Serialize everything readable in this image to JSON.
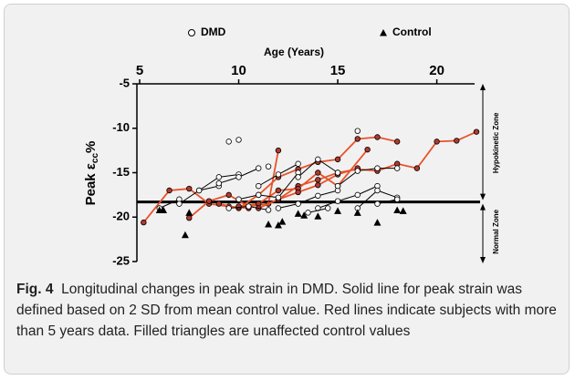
{
  "chart_data": {
    "type": "line",
    "xlabel": "Age (Years)",
    "ylabel": {
      "text": "Peak ε",
      "sub": "cc",
      "suffix": "%"
    },
    "legend": [
      {
        "label": "DMD",
        "marker": "circle"
      },
      {
        "label": "Control",
        "marker": "triangle"
      }
    ],
    "xlim": [
      5,
      22
    ],
    "xticks": [
      5,
      10,
      15,
      20
    ],
    "ylim": [
      -5,
      -25
    ],
    "yticks": [
      -5,
      -10,
      -15,
      -20,
      -25
    ],
    "threshold": -18.3,
    "zones": [
      "Hypokinetic Zone",
      "Normal Zone"
    ],
    "series": [
      {
        "color": "#e8532b",
        "x": [
          5.2,
          6.5,
          7.5,
          8.5,
          9.5,
          10.5
        ],
        "values": [
          -20.6,
          -17.0,
          -16.8,
          -18.5,
          -18.8,
          -19.0
        ]
      },
      {
        "color": "#e8532b",
        "x": [
          7.5,
          8.5,
          9.5,
          10.5,
          11.5,
          12.0
        ],
        "values": [
          -20.1,
          -18.2,
          -17.5,
          -18.8,
          -18.5,
          -12.5
        ]
      },
      {
        "color": "#e8532b",
        "x": [
          9,
          10,
          11,
          12,
          13,
          14,
          15,
          16,
          17,
          18
        ],
        "values": [
          -18.5,
          -19.0,
          -17.5,
          -15.5,
          -14.6,
          -13.8,
          -13.5,
          -11.2,
          -11.0,
          -11.5
        ]
      },
      {
        "color": "#e8532b",
        "x": [
          12,
          13,
          14,
          15,
          16,
          17,
          18,
          19,
          20,
          21,
          22
        ],
        "values": [
          -18.0,
          -16.5,
          -15.8,
          -15.0,
          -14.6,
          -14.8,
          -14.0,
          -14.5,
          -11.5,
          -11.4,
          -10.4
        ]
      },
      {
        "color": "#e8532b",
        "x": [
          10,
          11,
          12,
          13,
          14,
          15,
          16.5
        ],
        "values": [
          -18.8,
          -18.5,
          -17.0,
          -16.8,
          -15.0,
          -16.5,
          -12.4
        ]
      },
      {
        "color": "#e8532b",
        "x": [
          11,
          12,
          13,
          14,
          15,
          16
        ],
        "values": [
          -19.0,
          -18.0,
          -17.2,
          -16.4,
          -15.2,
          -14.5
        ]
      },
      {
        "color": "#000000",
        "x": [
          6,
          7
        ],
        "values": [
          -19.0,
          -18.0
        ]
      },
      {
        "color": "#000000",
        "x": [
          7,
          8,
          9
        ],
        "values": [
          -18.5,
          -17.0,
          -16.5
        ]
      },
      {
        "color": "#000000",
        "x": [
          8,
          9,
          10
        ],
        "values": [
          -17.0,
          -15.5,
          -15.2
        ]
      },
      {
        "color": "#000000",
        "x": [
          9.5
        ],
        "values": [
          -11.5
        ]
      },
      {
        "color": "#000000",
        "x": [
          10
        ],
        "values": [
          -11.3
        ]
      },
      {
        "color": "#000000",
        "x": [
          9,
          10,
          11
        ],
        "values": [
          -16.2,
          -15.5,
          -14.5
        ]
      },
      {
        "color": "#000000",
        "x": [
          10,
          11,
          12,
          13
        ],
        "values": [
          -18.0,
          -17.5,
          -17.8,
          -15.0
        ]
      },
      {
        "color": "#000000",
        "x": [
          11,
          12,
          13
        ],
        "values": [
          -16.5,
          -15.2,
          -14.0
        ]
      },
      {
        "color": "#000000",
        "x": [
          12,
          13,
          14,
          15
        ],
        "values": [
          -19.0,
          -18.5,
          -17.6,
          -17.0
        ]
      },
      {
        "color": "#000000",
        "x": [
          13,
          14,
          15
        ],
        "values": [
          -15.5,
          -13.5,
          -15.0
        ]
      },
      {
        "color": "#000000",
        "x": [
          14,
          15,
          16,
          17
        ],
        "values": [
          -19.0,
          -18.2,
          -17.5,
          -16.5
        ]
      },
      {
        "color": "#000000",
        "x": [
          15,
          16,
          17,
          18
        ],
        "values": [
          -16.5,
          -14.8,
          -14.5,
          -14.5
        ]
      },
      {
        "color": "#000000",
        "x": [
          16,
          17,
          18
        ],
        "values": [
          -19.0,
          -17.0,
          -17.8
        ]
      },
      {
        "color": "#000000",
        "x": [
          17,
          18
        ],
        "values": [
          -18.5,
          -18.0
        ]
      },
      {
        "color": "#000000",
        "x": [
          16
        ],
        "values": [
          -10.3
        ]
      },
      {
        "color": "#000000",
        "x": [
          11.5
        ],
        "values": [
          -14.3
        ]
      },
      {
        "color": "#000000",
        "x": [
          13.5,
          14.5
        ],
        "values": [
          -19.5,
          -19.0
        ]
      },
      {
        "color": "#000000",
        "x": [
          9.5,
          10.5,
          11.5
        ],
        "values": [
          -19.0,
          -18.8,
          -19.2
        ]
      }
    ],
    "controls": {
      "x": [
        6,
        6.2,
        7.5,
        7.3,
        11.5,
        12,
        12.2,
        13,
        13.3,
        14,
        15,
        16,
        17,
        18,
        18.3
      ],
      "values": [
        -19.2,
        -19.2,
        -19.5,
        -22,
        -20.8,
        -20.9,
        -20.5,
        -19.6,
        -19.8,
        -19.9,
        -19.3,
        -19.5,
        -20.6,
        -19.2,
        -19.3
      ]
    }
  },
  "caption": {
    "label": "Fig. 4",
    "text": "Longitudinal changes in peak strain in DMD. Solid line for peak strain was defined based on 2 SD from mean control value. Red lines indicate subjects with more than 5 years data. Filled triangles are unaffected control values"
  }
}
